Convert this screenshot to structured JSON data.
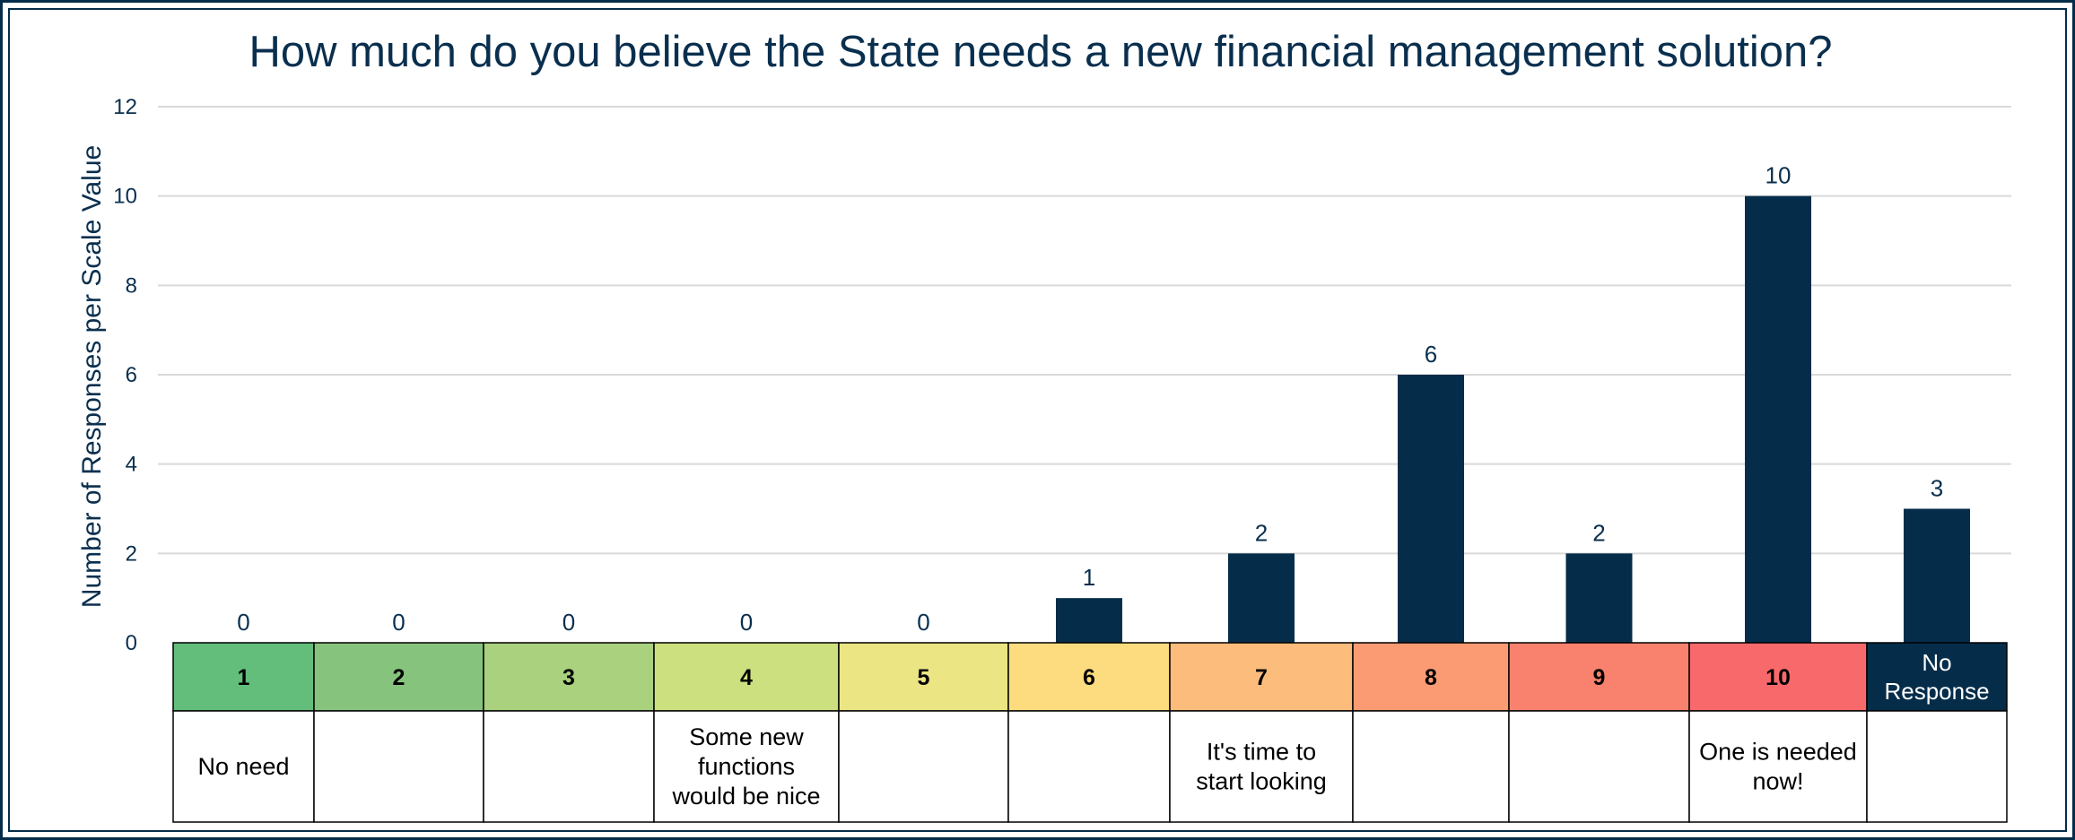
{
  "chart_data": {
    "type": "bar",
    "title": "How much do you believe the State needs a new financial management solution?",
    "ylabel": "Number of Responses per Scale Value",
    "xlabel": "",
    "ylim": [
      0,
      12
    ],
    "yticks": [
      0,
      2,
      4,
      6,
      8,
      10,
      12
    ],
    "grid": true,
    "categories": [
      "1",
      "2",
      "3",
      "4",
      "5",
      "6",
      "7",
      "8",
      "9",
      "10",
      "No Response"
    ],
    "values": [
      0,
      0,
      0,
      0,
      0,
      1,
      2,
      6,
      2,
      10,
      3
    ],
    "bar_color": "#052d4a",
    "category_colors": [
      "#63be7b",
      "#86c47d",
      "#a9d17e",
      "#cce07f",
      "#ebe583",
      "#fddc7f",
      "#fcbc7b",
      "#fa9b73",
      "#f8826e",
      "#f8696b",
      "#052d4a"
    ],
    "descriptions": [
      "No need",
      "",
      "",
      "Some new functions would be nice",
      "",
      "",
      "It's time to start looking",
      "",
      "",
      "One is needed now!",
      ""
    ]
  }
}
